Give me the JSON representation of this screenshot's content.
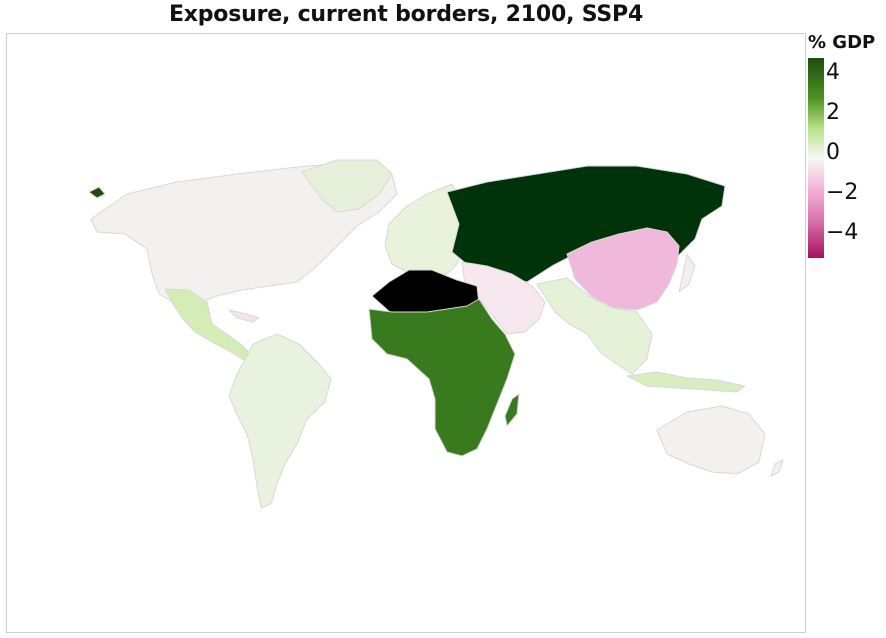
{
  "title": "Exposure, current borders, 2100, SSP4",
  "legend": {
    "title": "% GDP",
    "ticks": [
      "4",
      "2",
      "0",
      "−2",
      "−4"
    ],
    "tick_values": [
      4,
      2,
      0,
      -2,
      -4
    ],
    "range": [
      -5,
      5
    ],
    "colors": {
      "max": "#1e4d0f",
      "high": "#4d9221",
      "mid_high": "#b8e186",
      "zero": "#f7f7f7",
      "mid_low": "#f1b6da",
      "low": "#de77ae",
      "min": "#c51b7d"
    }
  },
  "regions": [
    {
      "name": "Russia & Central Asia",
      "color": "#00330a"
    },
    {
      "name": "Sub-Saharan Africa",
      "color": "#3a7a1e"
    },
    {
      "name": "North Africa",
      "color": "#000000"
    },
    {
      "name": "China",
      "color": "#f0b8db"
    },
    {
      "name": "Mexico & Central America",
      "color": "#d4edb6"
    },
    {
      "name": "South & Southeast Asia",
      "color": "#e6f2d8"
    },
    {
      "name": "Europe",
      "color": "#e9f3dc"
    },
    {
      "name": "South America",
      "color": "#e9f2de"
    },
    {
      "name": "North America",
      "color": "#f3f0ef"
    },
    {
      "name": "Middle East",
      "color": "#f7e8ef"
    },
    {
      "name": "Australia",
      "color": "#f3f0ef"
    }
  ]
}
